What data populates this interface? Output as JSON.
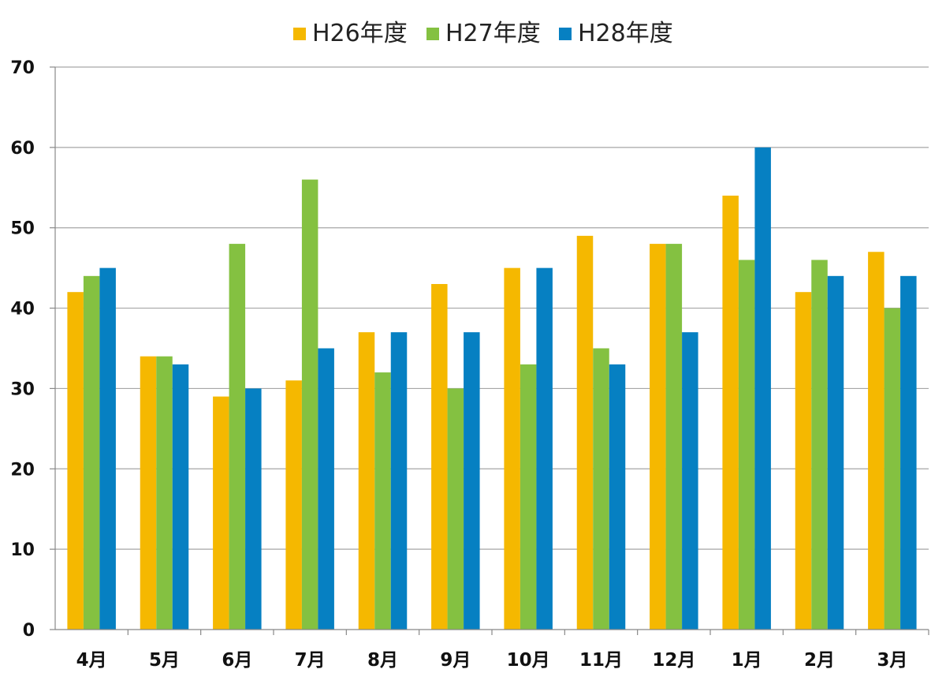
{
  "chart_data": {
    "type": "bar",
    "title": "",
    "xlabel": "",
    "ylabel": "",
    "ylim": [
      0,
      70
    ],
    "yticks": [
      0,
      10,
      20,
      30,
      40,
      50,
      60,
      70
    ],
    "grid": true,
    "legend_position": "top-center",
    "categories": [
      "4月",
      "5月",
      "6月",
      "7月",
      "8月",
      "9月",
      "10月",
      "11月",
      "12月",
      "1月",
      "2月",
      "3月"
    ],
    "series": [
      {
        "name": "H26年度",
        "color": "#F5B800",
        "values": [
          42,
          34,
          29,
          31,
          37,
          43,
          45,
          49,
          48,
          54,
          42,
          47
        ]
      },
      {
        "name": "H27年度",
        "color": "#84C141",
        "values": [
          44,
          34,
          48,
          56,
          32,
          30,
          33,
          35,
          48,
          46,
          46,
          40
        ]
      },
      {
        "name": "H28年度",
        "color": "#0680C2",
        "values": [
          45,
          33,
          30,
          35,
          37,
          37,
          45,
          33,
          37,
          60,
          44,
          44
        ]
      }
    ]
  }
}
